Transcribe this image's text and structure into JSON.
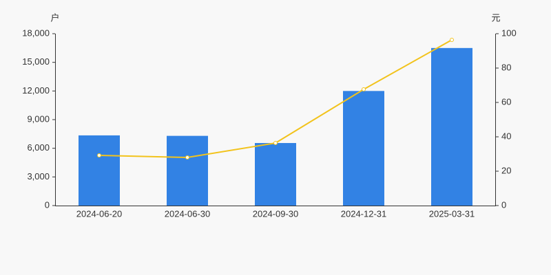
{
  "chart_data": {
    "type": "bar_line",
    "y_axis_label": "户",
    "y2_axis_label": "元",
    "categories": [
      "2024-06-20",
      "2024-06-30",
      "2024-09-30",
      "2024-12-31",
      "2025-03-31"
    ],
    "series": [
      {
        "type": "bar",
        "color": "#3282e4",
        "values": [
          7350,
          7300,
          6550,
          12000,
          16500
        ]
      },
      {
        "type": "line",
        "axis": "y2",
        "color": "#f2c31c",
        "values": [
          29.2,
          28,
          36.4,
          67.6,
          96.4
        ]
      }
    ],
    "ylim": [
      0,
      18000
    ],
    "yticks": [
      0,
      {
        "value": 3000,
        "label": "3,000"
      },
      {
        "value": 6000,
        "label": "6,000"
      },
      {
        "value": 9000,
        "label": "9,000"
      },
      {
        "value": 12000,
        "label": "12,000"
      },
      {
        "value": 15000,
        "label": "15,000"
      },
      {
        "value": 18000,
        "label": "18,000"
      }
    ],
    "y2lim": [
      0,
      100
    ],
    "y2ticks": [
      0,
      20,
      40,
      60,
      80,
      100
    ],
    "grid": false
  }
}
